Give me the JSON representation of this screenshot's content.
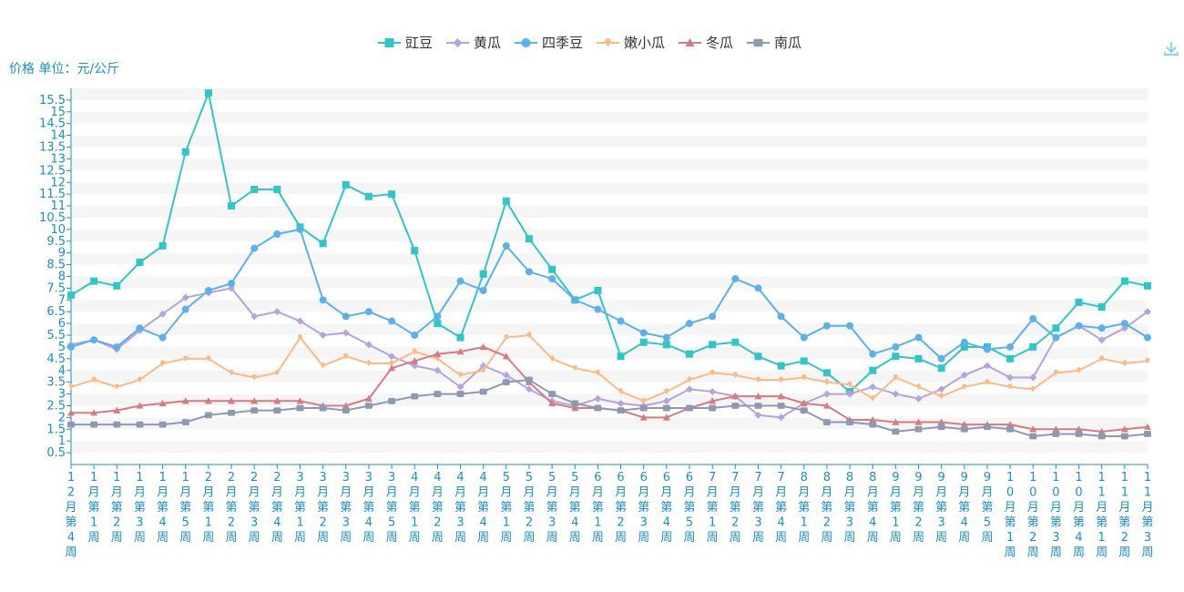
{
  "chart_data": {
    "type": "line",
    "unit_label": "价格 单位：元/公斤",
    "ylim": [
      0,
      16
    ],
    "y_ticks": [
      0.5,
      1,
      1.5,
      2,
      2.5,
      3,
      3.5,
      4,
      4.5,
      5,
      5.5,
      6,
      6.5,
      7,
      7.5,
      8,
      8.5,
      9,
      9.5,
      10,
      10.5,
      11,
      11.5,
      12,
      12.5,
      13,
      13.5,
      14,
      14.5,
      15,
      15.5
    ],
    "grid": "horizontal bands",
    "legend_position": "top-center",
    "categories": [
      "12月第4周",
      "1月第1周",
      "1月第2周",
      "1月第3周",
      "1月第4周",
      "1月第5周",
      "2月第1周",
      "2月第2周",
      "2月第3周",
      "2月第4周",
      "3月第1周",
      "3月第2周",
      "3月第3周",
      "3月第4周",
      "3月第5周",
      "4月第1周",
      "4月第2周",
      "4月第3周",
      "4月第4周",
      "5月第1周",
      "5月第2周",
      "5月第3周",
      "5月第4周",
      "6月第1周",
      "6月第2周",
      "6月第3周",
      "6月第4周",
      "6月第5周",
      "7月第1周",
      "7月第2周",
      "7月第3周",
      "7月第4周",
      "8月第1周",
      "8月第2周",
      "8月第3周",
      "8月第4周",
      "9月第1周",
      "9月第2周",
      "9月第3周",
      "9月第4周",
      "9月第5周",
      "10月第1周",
      "10月第2周",
      "10月第3周",
      "10月第4周",
      "11月第1周",
      "11月第2周",
      "11月第3周"
    ],
    "series": [
      {
        "name": "豇豆",
        "color": "#2ec7c9",
        "marker": "square",
        "values": [
          7.2,
          7.8,
          7.6,
          8.6,
          9.3,
          13.3,
          15.8,
          11.0,
          11.7,
          11.7,
          10.1,
          9.4,
          11.9,
          11.4,
          11.5,
          9.1,
          6.0,
          5.4,
          8.1,
          11.2,
          9.6,
          8.3,
          7.0,
          7.4,
          4.6,
          5.2,
          5.1,
          4.7,
          5.1,
          5.2,
          4.6,
          4.2,
          4.4,
          3.9,
          3.1,
          4.0,
          4.6,
          4.5,
          4.1,
          5.0,
          5.0,
          4.5,
          5.0,
          5.8,
          6.9,
          6.7,
          7.8,
          7.6
        ]
      },
      {
        "name": "黄瓜",
        "color": "#b6a2de",
        "marker": "diamond",
        "values": [
          5.1,
          5.3,
          4.9,
          5.7,
          6.4,
          7.1,
          7.3,
          7.5,
          6.3,
          6.5,
          6.1,
          5.5,
          5.6,
          5.1,
          4.6,
          4.2,
          4.0,
          3.3,
          4.2,
          3.8,
          3.2,
          2.7,
          2.5,
          2.8,
          2.6,
          2.5,
          2.7,
          3.2,
          3.1,
          2.9,
          2.1,
          2.0,
          2.6,
          3.0,
          3.0,
          3.3,
          3.0,
          2.8,
          3.2,
          3.8,
          4.2,
          3.7,
          3.7,
          5.4,
          5.9,
          5.3,
          5.8,
          6.5
        ]
      },
      {
        "name": "四季豆",
        "color": "#5ab1ef",
        "marker": "circle",
        "values": [
          5.0,
          5.3,
          5.0,
          5.8,
          5.4,
          6.6,
          7.4,
          7.7,
          9.2,
          9.8,
          10.0,
          7.0,
          6.3,
          6.5,
          6.1,
          5.5,
          6.3,
          7.8,
          7.4,
          9.3,
          8.2,
          7.9,
          7.0,
          6.6,
          6.1,
          5.6,
          5.4,
          6.0,
          6.3,
          7.9,
          7.5,
          6.3,
          5.4,
          5.9,
          5.9,
          4.7,
          5.0,
          5.4,
          4.5,
          5.2,
          4.9,
          5.0,
          6.2,
          5.4,
          5.9,
          5.8,
          6.0,
          5.4
        ]
      },
      {
        "name": "嫩小瓜",
        "color": "#ffb980",
        "marker": "pin",
        "values": [
          3.3,
          3.6,
          3.3,
          3.6,
          4.3,
          4.5,
          4.5,
          3.9,
          3.7,
          3.9,
          5.4,
          4.2,
          4.6,
          4.3,
          4.3,
          4.8,
          4.5,
          3.8,
          4.0,
          5.4,
          5.5,
          4.5,
          4.1,
          3.9,
          3.1,
          2.7,
          3.1,
          3.6,
          3.9,
          3.8,
          3.6,
          3.6,
          3.7,
          3.5,
          3.4,
          2.8,
          3.7,
          3.3,
          2.9,
          3.3,
          3.5,
          3.3,
          3.2,
          3.9,
          4.0,
          4.5,
          4.3,
          4.4
        ]
      },
      {
        "name": "冬瓜",
        "color": "#d87a80",
        "marker": "triangle",
        "values": [
          2.2,
          2.2,
          2.3,
          2.5,
          2.6,
          2.7,
          2.7,
          2.7,
          2.7,
          2.7,
          2.7,
          2.5,
          2.5,
          2.8,
          4.1,
          4.4,
          4.7,
          4.8,
          5.0,
          4.6,
          3.5,
          2.6,
          2.4,
          2.4,
          2.3,
          2.0,
          2.0,
          2.4,
          2.7,
          2.9,
          2.9,
          2.9,
          2.6,
          2.5,
          1.9,
          1.9,
          1.8,
          1.8,
          1.8,
          1.7,
          1.7,
          1.7,
          1.5,
          1.5,
          1.5,
          1.4,
          1.5,
          1.6
        ]
      },
      {
        "name": "南瓜",
        "color": "#8d98b3",
        "marker": "roundRect",
        "values": [
          1.7,
          1.7,
          1.7,
          1.7,
          1.7,
          1.8,
          2.1,
          2.2,
          2.3,
          2.3,
          2.4,
          2.4,
          2.3,
          2.5,
          2.7,
          2.9,
          3.0,
          3.0,
          3.1,
          3.5,
          3.6,
          3.0,
          2.6,
          2.4,
          2.3,
          2.4,
          2.4,
          2.4,
          2.4,
          2.5,
          2.5,
          2.5,
          2.3,
          1.8,
          1.8,
          1.7,
          1.4,
          1.5,
          1.6,
          1.5,
          1.6,
          1.5,
          1.2,
          1.3,
          1.3,
          1.2,
          1.2,
          1.3
        ]
      }
    ]
  },
  "toolbar": {
    "download_icon": "download-icon"
  }
}
